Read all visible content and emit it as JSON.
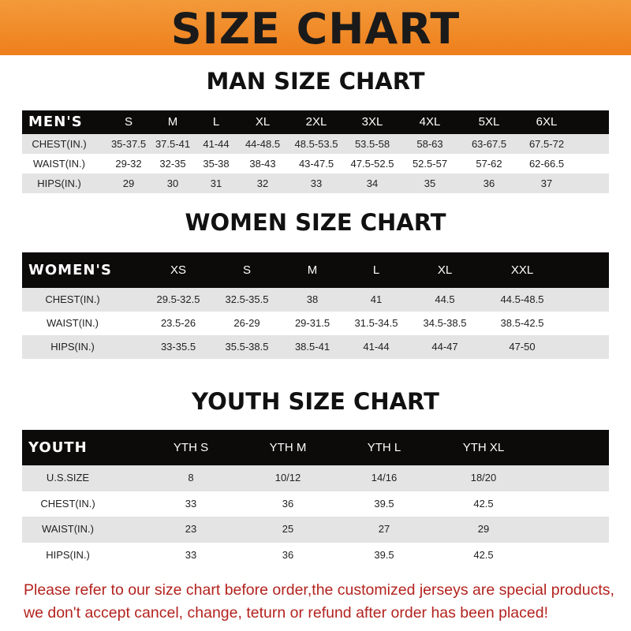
{
  "title": "SIZE CHART",
  "men": {
    "title": "MAN SIZE CHART",
    "header": [
      "MEN'S",
      "S",
      "M",
      "L",
      "XL",
      "2XL",
      "3XL",
      "4XL",
      "5XL",
      "6XL"
    ],
    "rows": [
      [
        "CHEST(IN.)",
        "35-37.5",
        "37.5-41",
        "41-44",
        "44-48.5",
        "48.5-53.5",
        "53.5-58",
        "58-63",
        "63-67.5",
        "67.5-72"
      ],
      [
        "WAIST(IN.)",
        "29-32",
        "32-35",
        "35-38",
        "38-43",
        "43-47.5",
        "47.5-52.5",
        "52.5-57",
        "57-62",
        "62-66.5"
      ],
      [
        "HIPS(IN.)",
        "29",
        "30",
        "31",
        "32",
        "33",
        "34",
        "35",
        "36",
        "37"
      ]
    ]
  },
  "women": {
    "title": "WOMEN SIZE CHART",
    "header": [
      "WOMEN'S",
      "XS",
      "S",
      "M",
      "L",
      "XL",
      "XXL"
    ],
    "rows": [
      [
        "CHEST(IN.)",
        "29.5-32.5",
        "32.5-35.5",
        "38",
        "41",
        "44.5",
        "44.5-48.5"
      ],
      [
        "WAIST(IN.)",
        "23.5-26",
        "26-29",
        "29-31.5",
        "31.5-34.5",
        "34.5-38.5",
        "38.5-42.5"
      ],
      [
        "HIPS(IN.)",
        "33-35.5",
        "35.5-38.5",
        "38.5-41",
        "41-44",
        "44-47",
        "47-50"
      ]
    ]
  },
  "youth": {
    "title": "YOUTH SIZE CHART",
    "header": [
      "YOUTH",
      "YTH S",
      "YTH M",
      "YTH L",
      "YTH XL"
    ],
    "rows": [
      [
        "U.S.SIZE",
        "8",
        "10/12",
        "14/16",
        "18/20"
      ],
      [
        "CHEST(IN.)",
        "33",
        "36",
        "39.5",
        "42.5"
      ],
      [
        "WAIST(IN.)",
        "23",
        "25",
        "27",
        "29"
      ],
      [
        "HIPS(IN.)",
        "33",
        "36",
        "39.5",
        "42.5"
      ]
    ]
  },
  "footer": {
    "line1": "Please refer to our size chart before order,the customized jerseys are special products,",
    "line2": "we don't accept cancel, change, teturn or refund after order has been placed!"
  },
  "colors": {
    "banner": "#ee7f1c",
    "header_row": "#0d0a0a",
    "stripe": "#e4e4e4",
    "notice": "#b3231f"
  }
}
